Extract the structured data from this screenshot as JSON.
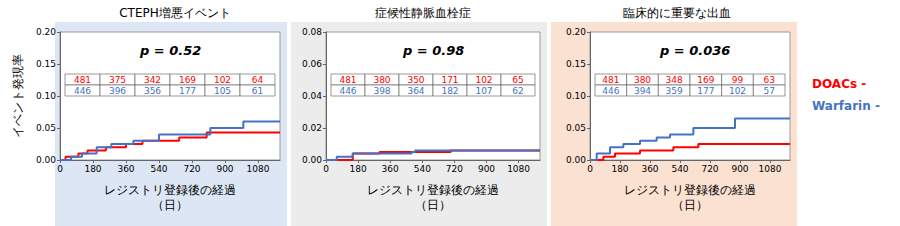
{
  "chart_data": [
    {
      "type": "line",
      "title": "CTEPH増悪イベント",
      "annotation": "p = 0.52",
      "xlabel": "レジストリ登録後の経過\n（日）",
      "ylabel": "イベント発現率",
      "line_style": "step",
      "grid": false,
      "xlim": [
        0,
        1200
      ],
      "xticks": [
        0,
        180,
        360,
        540,
        720,
        900,
        1080
      ],
      "ylim": [
        0,
        0.2
      ],
      "yticks": [
        {
          "value": 0,
          "label": "0.00"
        },
        {
          "value": 0.05,
          "label": "0.05"
        },
        {
          "value": 0.1,
          "label": "0.10"
        },
        {
          "value": 0.15,
          "label": "0.15"
        },
        {
          "value": 0.2,
          "label": "0.20"
        }
      ],
      "series": [
        {
          "name": "DOACs -",
          "color": "#ff0000",
          "x": [
            0,
            30,
            100,
            150,
            250,
            360,
            450,
            650,
            800,
            1200
          ],
          "values": [
            0,
            0.005,
            0.01,
            0.015,
            0.02,
            0.025,
            0.03,
            0.035,
            0.043,
            0.043
          ],
          "at_risk": [
            481,
            375,
            342,
            169,
            102,
            64
          ]
        },
        {
          "name": "Warfarin -",
          "color": "#4472c4",
          "x": [
            0,
            60,
            120,
            200,
            280,
            400,
            540,
            820,
            1000,
            1200
          ],
          "values": [
            0,
            0.005,
            0.01,
            0.02,
            0.025,
            0.03,
            0.04,
            0.05,
            0.06,
            0.06
          ],
          "at_risk": [
            446,
            396,
            356,
            177,
            105,
            61
          ]
        }
      ]
    },
    {
      "type": "line",
      "title": "症候性静脈血栓症",
      "annotation": "p = 0.98",
      "xlabel": "レジストリ登録後の経過\n（日）",
      "line_style": "step",
      "grid": false,
      "xlim": [
        0,
        1200
      ],
      "xticks": [
        0,
        180,
        360,
        540,
        720,
        900,
        1080
      ],
      "ylim": [
        0,
        0.08
      ],
      "yticks": [
        {
          "value": 0,
          "label": "0.00"
        },
        {
          "value": 0.02,
          "label": "0.02"
        },
        {
          "value": 0.04,
          "label": "0.04"
        },
        {
          "value": 0.06,
          "label": "0.06"
        },
        {
          "value": 0.08,
          "label": "0.08"
        }
      ],
      "series": [
        {
          "name": "DOACs -",
          "color": "#ff0000",
          "x": [
            0,
            150,
            300,
            700,
            1200
          ],
          "values": [
            0,
            0.004,
            0.005,
            0.006,
            0.006
          ],
          "at_risk": [
            481,
            380,
            350,
            171,
            102,
            65
          ]
        },
        {
          "name": "Warfarin -",
          "color": "#4472c4",
          "x": [
            0,
            60,
            150,
            480,
            500,
            1200
          ],
          "values": [
            0,
            0.002,
            0.004,
            0.005,
            0.006,
            0.006
          ],
          "at_risk": [
            446,
            398,
            364,
            182,
            107,
            62
          ]
        }
      ]
    },
    {
      "type": "line",
      "title": "臨床的に重要な出血",
      "annotation": "p = 0.036",
      "xlabel": "レジストリ登録後の経過\n（日）",
      "line_style": "step",
      "grid": false,
      "legend": "right",
      "xlim": [
        0,
        1200
      ],
      "xticks": [
        0,
        180,
        360,
        540,
        720,
        900,
        1080
      ],
      "ylim": [
        0,
        0.2
      ],
      "yticks": [
        {
          "value": 0,
          "label": "0.00"
        },
        {
          "value": 0.05,
          "label": "0.05"
        },
        {
          "value": 0.1,
          "label": "0.10"
        },
        {
          "value": 0.15,
          "label": "0.15"
        },
        {
          "value": 0.2,
          "label": "0.20"
        }
      ],
      "series": [
        {
          "name": "DOACs -",
          "color": "#ff0000",
          "x": [
            0,
            80,
            150,
            300,
            500,
            650,
            1200
          ],
          "values": [
            0,
            0.005,
            0.01,
            0.015,
            0.02,
            0.025,
            0.025
          ],
          "at_risk": [
            481,
            380,
            348,
            169,
            99,
            63
          ]
        },
        {
          "name": "Warfarin -",
          "color": "#4472c4",
          "x": [
            0,
            40,
            120,
            200,
            300,
            400,
            480,
            620,
            870,
            1200
          ],
          "values": [
            0,
            0.01,
            0.02,
            0.025,
            0.03,
            0.035,
            0.04,
            0.05,
            0.065,
            0.065
          ],
          "at_risk": [
            446,
            394,
            359,
            177,
            102,
            57
          ]
        }
      ]
    }
  ]
}
